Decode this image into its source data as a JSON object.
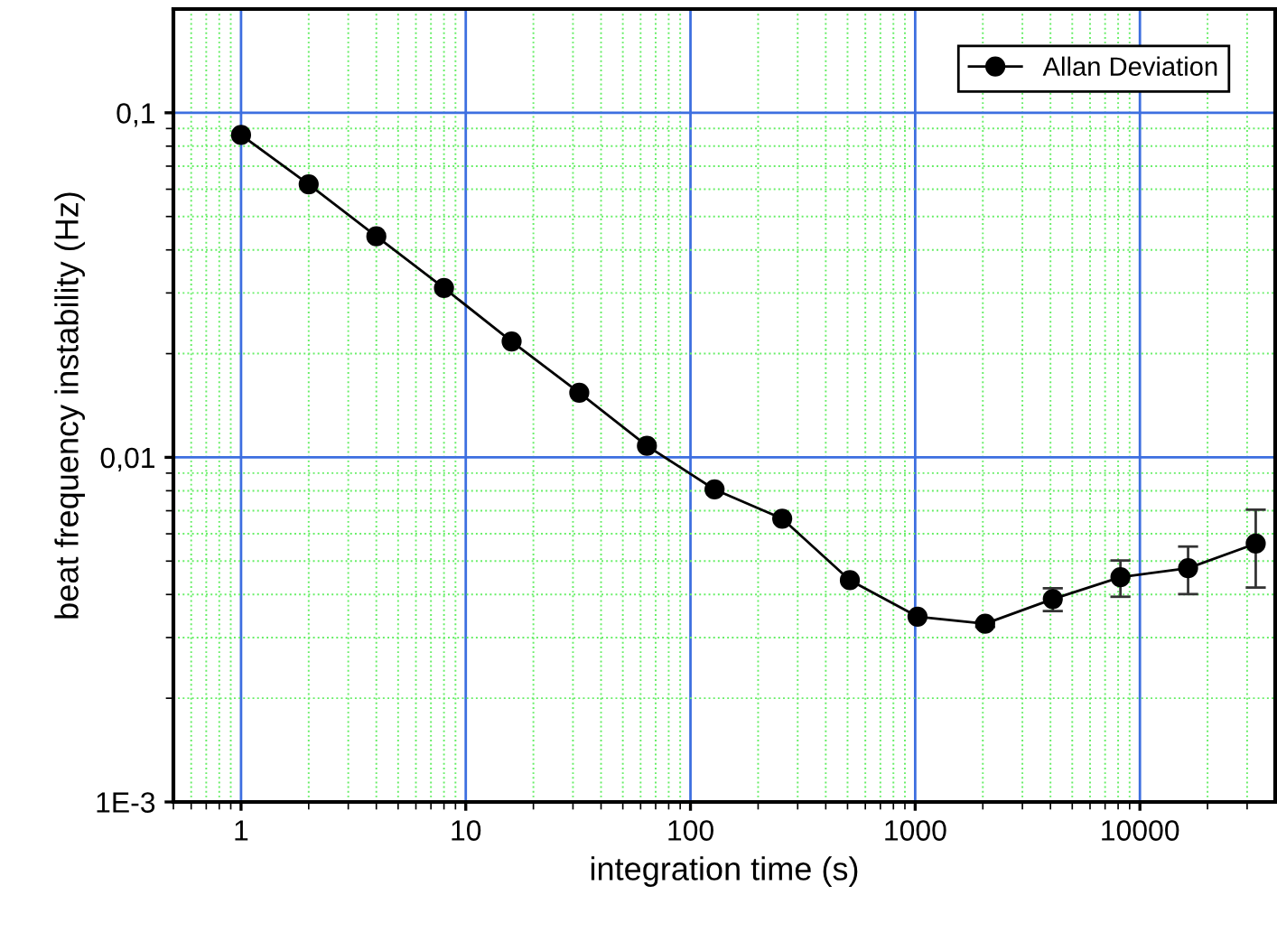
{
  "chart_data": {
    "type": "line",
    "xlabel": "integration time (s)",
    "ylabel": "beat frequency instability (Hz)",
    "x": [
      1,
      2,
      4,
      8,
      16,
      32,
      64,
      128,
      256,
      512,
      1024,
      2048,
      4096,
      8192,
      16384,
      32768
    ],
    "series": [
      {
        "name": "Allan Deviation",
        "color": "#000000",
        "values": [
          0.0862,
          0.062,
          0.0438,
          0.031,
          0.0217,
          0.0154,
          0.0108,
          0.00807,
          0.00664,
          0.0044,
          0.00345,
          0.00329,
          0.00388,
          0.00449,
          0.00477,
          0.00562
        ],
        "errors": [
          null,
          null,
          null,
          null,
          null,
          null,
          null,
          null,
          null,
          null,
          null,
          [
            0.00322,
            0.00334
          ],
          [
            0.00358,
            0.00417
          ],
          [
            0.00394,
            0.00502
          ],
          [
            0.00401,
            0.00551
          ],
          [
            0.00419,
            0.00705
          ]
        ]
      }
    ],
    "log": "xy",
    "xlim": [
      0.5,
      40000
    ],
    "xticks": [
      {
        "value": 0.5,
        "label": null
      },
      {
        "value": 0.6,
        "label": null
      },
      {
        "value": 0.7,
        "label": null
      },
      {
        "value": 0.8,
        "label": null
      },
      {
        "value": 0.9,
        "label": null
      },
      1,
      {
        "value": 2,
        "label": null
      },
      {
        "value": 3,
        "label": null
      },
      {
        "value": 4,
        "label": null
      },
      {
        "value": 5,
        "label": null
      },
      {
        "value": 6,
        "label": null
      },
      {
        "value": 7,
        "label": null
      },
      {
        "value": 8,
        "label": null
      },
      {
        "value": 9,
        "label": null
      },
      10,
      {
        "value": 20,
        "label": null
      },
      {
        "value": 30,
        "label": null
      },
      {
        "value": 40,
        "label": null
      },
      {
        "value": 50,
        "label": null
      },
      {
        "value": 60,
        "label": null
      },
      {
        "value": 70,
        "label": null
      },
      {
        "value": 80,
        "label": null
      },
      {
        "value": 90,
        "label": null
      },
      100,
      {
        "value": 200,
        "label": null
      },
      {
        "value": 300,
        "label": null
      },
      {
        "value": 400,
        "label": null
      },
      {
        "value": 500,
        "label": null
      },
      {
        "value": 600,
        "label": null
      },
      {
        "value": 700,
        "label": null
      },
      {
        "value": 800,
        "label": null
      },
      {
        "value": 900,
        "label": null
      },
      1000,
      {
        "value": 2000,
        "label": null
      },
      {
        "value": 3000,
        "label": null
      },
      {
        "value": 4000,
        "label": null
      },
      {
        "value": 5000,
        "label": null
      },
      {
        "value": 6000,
        "label": null
      },
      {
        "value": 7000,
        "label": null
      },
      {
        "value": 8000,
        "label": null
      },
      {
        "value": 9000,
        "label": null
      },
      10000,
      {
        "value": 20000,
        "label": null
      },
      {
        "value": 30000,
        "label": null
      }
    ],
    "ylim": [
      0.001,
      0.2
    ],
    "yticks": [
      {
        "value": 0.001,
        "label": "1E-3"
      },
      {
        "value": 0.002,
        "label": null
      },
      {
        "value": 0.003,
        "label": null
      },
      {
        "value": 0.004,
        "label": null
      },
      {
        "value": 0.005,
        "label": null
      },
      {
        "value": 0.006,
        "label": null
      },
      {
        "value": 0.007,
        "label": null
      },
      {
        "value": 0.008,
        "label": null
      },
      {
        "value": 0.009,
        "label": null
      },
      {
        "value": 0.01,
        "label": "0,01"
      },
      {
        "value": 0.02,
        "label": null
      },
      {
        "value": 0.03,
        "label": null
      },
      {
        "value": 0.04,
        "label": null
      },
      {
        "value": 0.05,
        "label": null
      },
      {
        "value": 0.06,
        "label": null
      },
      {
        "value": 0.07,
        "label": null
      },
      {
        "value": 0.08,
        "label": null
      },
      {
        "value": 0.09,
        "label": null
      },
      {
        "value": 0.1,
        "label": "0,1"
      }
    ],
    "grid": true,
    "legend": "top right",
    "marker": "circle",
    "line_style": "solid"
  }
}
